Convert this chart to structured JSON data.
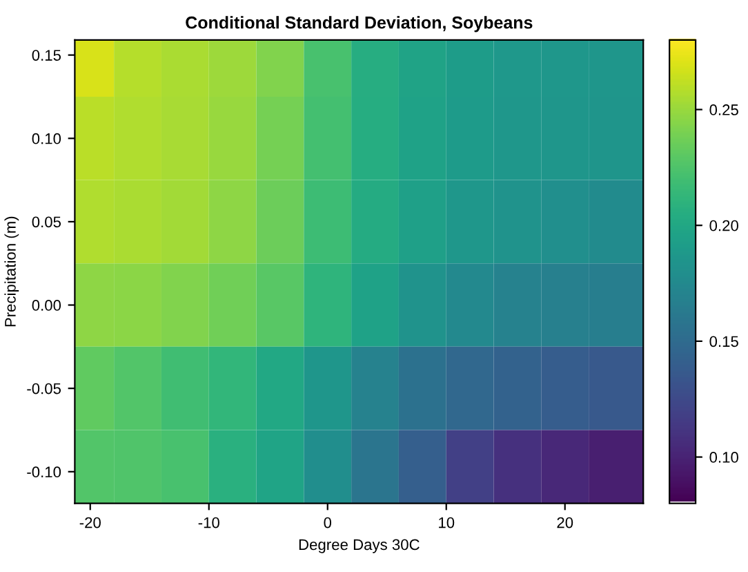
{
  "chart_data": {
    "type": "heatmap",
    "title": "Conditional Standard Deviation, Soybeans",
    "xlabel": "Degree Days 30C",
    "ylabel": "Precipitation (m)",
    "x": [
      -20,
      -16,
      -12,
      -8,
      -4,
      0,
      4,
      8,
      12,
      16,
      20,
      24
    ],
    "y": [
      0.15,
      0.1,
      0.05,
      0.0,
      -0.05,
      -0.1
    ],
    "cells": [
      [
        0.268,
        0.258,
        0.255,
        0.251,
        0.242,
        0.222,
        0.205,
        0.196,
        0.19,
        0.187,
        0.186,
        0.185
      ],
      [
        0.259,
        0.256,
        0.254,
        0.249,
        0.238,
        0.22,
        0.204,
        0.195,
        0.189,
        0.186,
        0.185,
        0.184
      ],
      [
        0.256,
        0.255,
        0.252,
        0.246,
        0.235,
        0.217,
        0.202,
        0.193,
        0.186,
        0.183,
        0.179,
        0.176
      ],
      [
        0.246,
        0.245,
        0.242,
        0.237,
        0.228,
        0.21,
        0.195,
        0.183,
        0.174,
        0.168,
        0.166,
        0.165
      ],
      [
        0.231,
        0.226,
        0.219,
        0.212,
        0.2,
        0.185,
        0.168,
        0.155,
        0.147,
        0.142,
        0.138,
        0.135
      ],
      [
        0.226,
        0.225,
        0.222,
        0.207,
        0.197,
        0.178,
        0.158,
        0.14,
        0.118,
        0.108,
        0.102,
        0.097
      ]
    ],
    "xlim": [
      -21.3,
      26.6
    ],
    "ylim": [
      -0.119,
      0.159
    ],
    "xticks": [
      -20,
      -10,
      0,
      10,
      20
    ],
    "yticks": [
      {
        "value": -0.1,
        "label": "-0.10"
      },
      {
        "value": -0.05,
        "label": "-0.05"
      },
      {
        "value": 0.0,
        "label": "0.00"
      },
      {
        "value": 0.05,
        "label": "0.05"
      },
      {
        "value": 0.1,
        "label": "0.10"
      },
      {
        "value": 0.15,
        "label": "0.15"
      }
    ],
    "clim": [
      0.08,
      0.28
    ],
    "cticks": [
      {
        "value": 0.1,
        "label": "0.10"
      },
      {
        "value": 0.15,
        "label": "0.15"
      },
      {
        "value": 0.2,
        "label": "0.20"
      },
      {
        "value": 0.25,
        "label": "0.25"
      }
    ],
    "grid": false
  }
}
